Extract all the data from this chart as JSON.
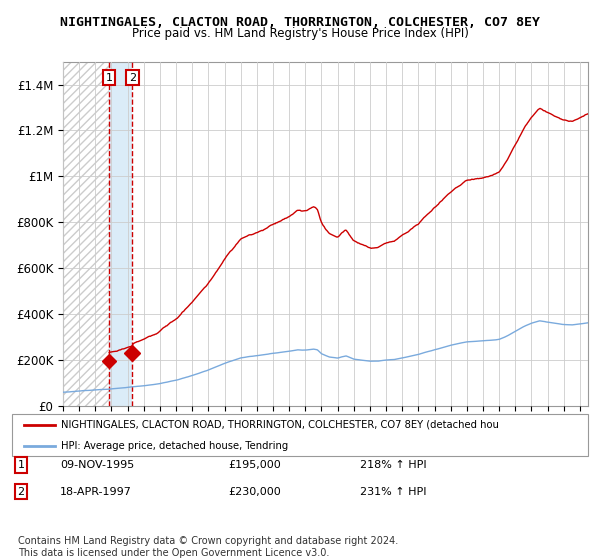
{
  "title": "NIGHTINGALES, CLACTON ROAD, THORRINGTON, COLCHESTER, CO7 8EY",
  "subtitle": "Price paid vs. HM Land Registry's House Price Index (HPI)",
  "sale1": {
    "date": "09-NOV-1995",
    "price": 195000,
    "hpi_pct": "218%",
    "label": "1"
  },
  "sale2": {
    "date": "18-APR-1997",
    "price": 230000,
    "hpi_pct": "231%",
    "label": "2"
  },
  "sale1_x": 1995.86,
  "sale2_x": 1997.3,
  "legend_line1": "NIGHTINGALES, CLACTON ROAD, THORRINGTON, COLCHESTER, CO7 8EY (detached hou",
  "legend_line2": "HPI: Average price, detached house, Tendring",
  "footnote": "Contains HM Land Registry data © Crown copyright and database right 2024.\nThis data is licensed under the Open Government Licence v3.0.",
  "hpi_color": "#7aaadd",
  "price_color": "#cc0000",
  "hatch_color": "#cccccc",
  "shaded_region_color": "#d8eaf8",
  "grid_color": "#cccccc",
  "ylim": [
    0,
    1500000
  ],
  "xlim_start": 1993.0,
  "xlim_end": 2025.5,
  "yticks": [
    0,
    200000,
    400000,
    600000,
    800000,
    1000000,
    1200000,
    1400000
  ],
  "ytick_labels": [
    "£0",
    "£200K",
    "£400K",
    "£600K",
    "£800K",
    "£1M",
    "£1.2M",
    "£1.4M"
  ]
}
